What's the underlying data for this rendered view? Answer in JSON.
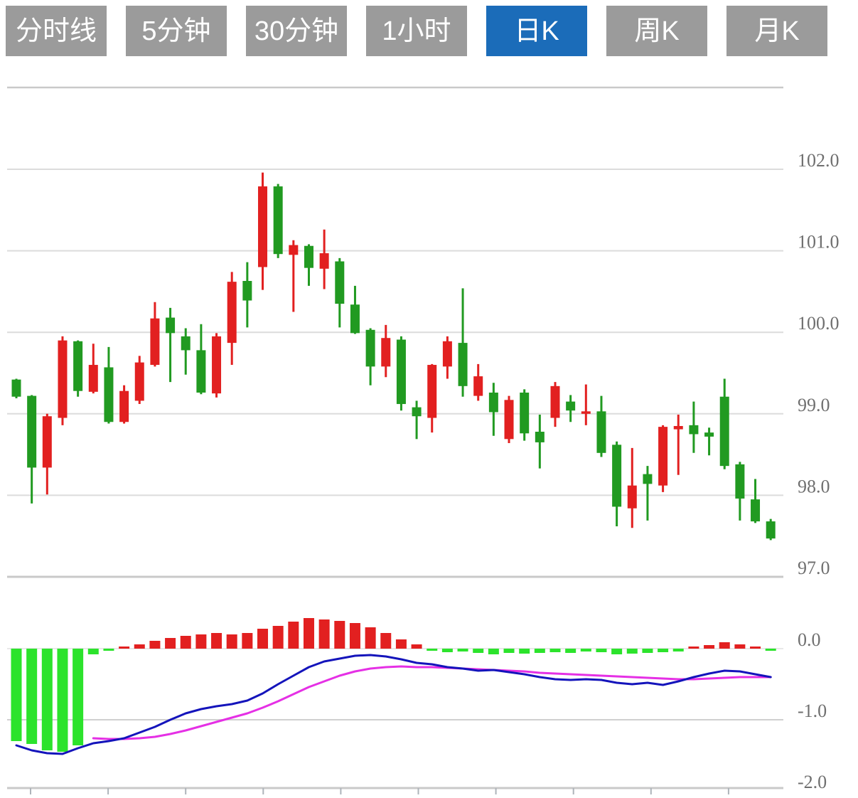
{
  "tab_bar": {
    "tabs": [
      {
        "label": "分时线"
      },
      {
        "label": "5分钟"
      },
      {
        "label": "30分钟"
      },
      {
        "label": "1小时"
      },
      {
        "label": "日K"
      },
      {
        "label": "周K"
      },
      {
        "label": "月K"
      }
    ],
    "active_label": "日K",
    "colors": {
      "inactive_bg": "#9b9b9b",
      "active_bg": "#1b6cb9",
      "text": "#ffffff"
    }
  },
  "chart_data": {
    "type": "candlestick",
    "convention": "chinese (red = up, green = down)",
    "colors": {
      "up": "#e22020",
      "down": "#219a21",
      "hist_up": "#e22020",
      "hist_down": "#2ce32c",
      "dif_line": "#1414bb",
      "dea_line": "#e530e5",
      "grid": "#dcdcdc",
      "border": "#c9c9c9",
      "tick": "#aeb4ba",
      "label": "#6f6f6f"
    },
    "panels": [
      {
        "name": "price",
        "type": "candlestick",
        "y_tick_labels": [
          "102.0",
          "101.0",
          "100.0",
          "99.0",
          "98.0",
          "97.0"
        ],
        "y_tick_values": [
          102.0,
          101.0,
          100.0,
          99.0,
          98.0,
          97.0
        ],
        "ylim": [
          96.9,
          102.0
        ],
        "grid": true,
        "candles_ohlc": [
          [
            99.42,
            99.43,
            99.19,
            99.21
          ],
          [
            99.22,
            99.23,
            97.9,
            98.34
          ],
          [
            98.34,
            99.0,
            98.01,
            98.97
          ],
          [
            98.95,
            99.95,
            98.86,
            99.9
          ],
          [
            99.89,
            99.9,
            99.21,
            99.28
          ],
          [
            99.27,
            99.86,
            99.25,
            99.6
          ],
          [
            99.57,
            99.82,
            98.88,
            98.9
          ],
          [
            98.9,
            99.35,
            98.88,
            99.28
          ],
          [
            99.16,
            99.71,
            99.12,
            99.63
          ],
          [
            99.6,
            100.37,
            99.58,
            100.17
          ],
          [
            100.18,
            100.3,
            99.39,
            99.99
          ],
          [
            99.95,
            100.05,
            99.48,
            99.78
          ],
          [
            99.78,
            100.1,
            99.24,
            99.26
          ],
          [
            99.25,
            99.99,
            99.2,
            99.95
          ],
          [
            99.87,
            100.74,
            99.6,
            100.62
          ],
          [
            100.63,
            100.86,
            100.06,
            100.39
          ],
          [
            100.8,
            101.96,
            100.52,
            101.79
          ],
          [
            101.79,
            101.82,
            100.91,
            100.96
          ],
          [
            100.95,
            101.13,
            100.25,
            101.07
          ],
          [
            101.06,
            101.08,
            100.57,
            100.79
          ],
          [
            100.78,
            101.26,
            100.53,
            100.97
          ],
          [
            100.87,
            100.91,
            100.06,
            100.35
          ],
          [
            100.34,
            100.57,
            99.98,
            99.99
          ],
          [
            100.03,
            100.05,
            99.35,
            99.58
          ],
          [
            99.58,
            100.09,
            99.45,
            99.93
          ],
          [
            99.91,
            99.95,
            99.04,
            99.12
          ],
          [
            99.08,
            99.16,
            98.69,
            98.97
          ],
          [
            98.95,
            99.61,
            98.77,
            99.6
          ],
          [
            99.58,
            99.95,
            99.43,
            99.89
          ],
          [
            99.87,
            100.54,
            99.21,
            99.34
          ],
          [
            99.22,
            99.61,
            99.16,
            99.46
          ],
          [
            99.26,
            99.38,
            98.73,
            99.02
          ],
          [
            98.69,
            99.22,
            98.64,
            99.17
          ],
          [
            99.26,
            99.3,
            98.67,
            98.76
          ],
          [
            98.78,
            98.99,
            98.33,
            98.65
          ],
          [
            98.95,
            99.39,
            98.84,
            99.34
          ],
          [
            99.15,
            99.23,
            98.9,
            99.04
          ],
          [
            99.0,
            99.36,
            98.86,
            99.03
          ],
          [
            99.03,
            99.22,
            98.47,
            98.52
          ],
          [
            98.62,
            98.66,
            97.62,
            97.86
          ],
          [
            97.84,
            98.58,
            97.6,
            98.12
          ],
          [
            98.26,
            98.36,
            97.69,
            98.14
          ],
          [
            98.12,
            98.86,
            98.04,
            98.84
          ],
          [
            98.81,
            98.99,
            98.25,
            98.85
          ],
          [
            98.86,
            99.15,
            98.52,
            98.75
          ],
          [
            98.77,
            98.83,
            98.49,
            98.72
          ],
          [
            99.21,
            99.43,
            98.32,
            98.36
          ],
          [
            98.38,
            98.41,
            97.69,
            97.96
          ],
          [
            97.95,
            98.2,
            97.66,
            97.68
          ],
          [
            97.68,
            97.71,
            97.45,
            97.47
          ]
        ]
      },
      {
        "name": "macd",
        "type": "macd",
        "y_tick_labels": [
          "0.0",
          "-1.0",
          "-2.0"
        ],
        "y_tick_values": [
          0.0,
          -1.0,
          -2.0
        ],
        "ylim": [
          -2.0,
          0.45
        ],
        "histogram": [
          -1.3,
          -1.34,
          -1.43,
          -1.45,
          -1.36,
          -0.08,
          -0.01,
          0.03,
          0.06,
          0.11,
          0.15,
          0.18,
          0.2,
          0.22,
          0.2,
          0.22,
          0.28,
          0.32,
          0.38,
          0.43,
          0.41,
          0.39,
          0.36,
          0.3,
          0.22,
          0.13,
          0.06,
          -0.03,
          -0.05,
          -0.04,
          -0.06,
          -0.08,
          -0.06,
          -0.07,
          -0.06,
          -0.05,
          -0.06,
          -0.04,
          -0.05,
          -0.08,
          -0.07,
          -0.06,
          -0.05,
          -0.04,
          0.03,
          0.05,
          0.09,
          0.06,
          0.02,
          -0.02
        ],
        "dif": [
          -1.36,
          -1.43,
          -1.47,
          -1.48,
          -1.4,
          -1.33,
          -1.3,
          -1.26,
          -1.18,
          -1.1,
          -1.0,
          -0.91,
          -0.85,
          -0.81,
          -0.78,
          -0.73,
          -0.63,
          -0.5,
          -0.38,
          -0.26,
          -0.18,
          -0.14,
          -0.1,
          -0.09,
          -0.11,
          -0.15,
          -0.2,
          -0.22,
          -0.26,
          -0.28,
          -0.31,
          -0.3,
          -0.33,
          -0.36,
          -0.4,
          -0.43,
          -0.44,
          -0.43,
          -0.44,
          -0.48,
          -0.5,
          -0.48,
          -0.51,
          -0.46,
          -0.4,
          -0.35,
          -0.31,
          -0.32,
          -0.36,
          -0.4
        ],
        "dea": [
          null,
          null,
          null,
          null,
          null,
          -1.26,
          -1.27,
          -1.27,
          -1.26,
          -1.24,
          -1.2,
          -1.15,
          -1.09,
          -1.03,
          -0.97,
          -0.91,
          -0.83,
          -0.74,
          -0.64,
          -0.54,
          -0.46,
          -0.38,
          -0.32,
          -0.28,
          -0.26,
          -0.25,
          -0.26,
          -0.26,
          -0.27,
          -0.28,
          -0.29,
          -0.3,
          -0.31,
          -0.32,
          -0.34,
          -0.35,
          -0.36,
          -0.37,
          -0.38,
          -0.39,
          -0.4,
          -0.41,
          -0.42,
          -0.43,
          -0.43,
          -0.42,
          -0.41,
          -0.4,
          -0.4,
          -0.4
        ]
      }
    ],
    "x_axis": {
      "labels_visible": false,
      "tick_count": 10,
      "ticks_every_n_candles": 5
    }
  }
}
